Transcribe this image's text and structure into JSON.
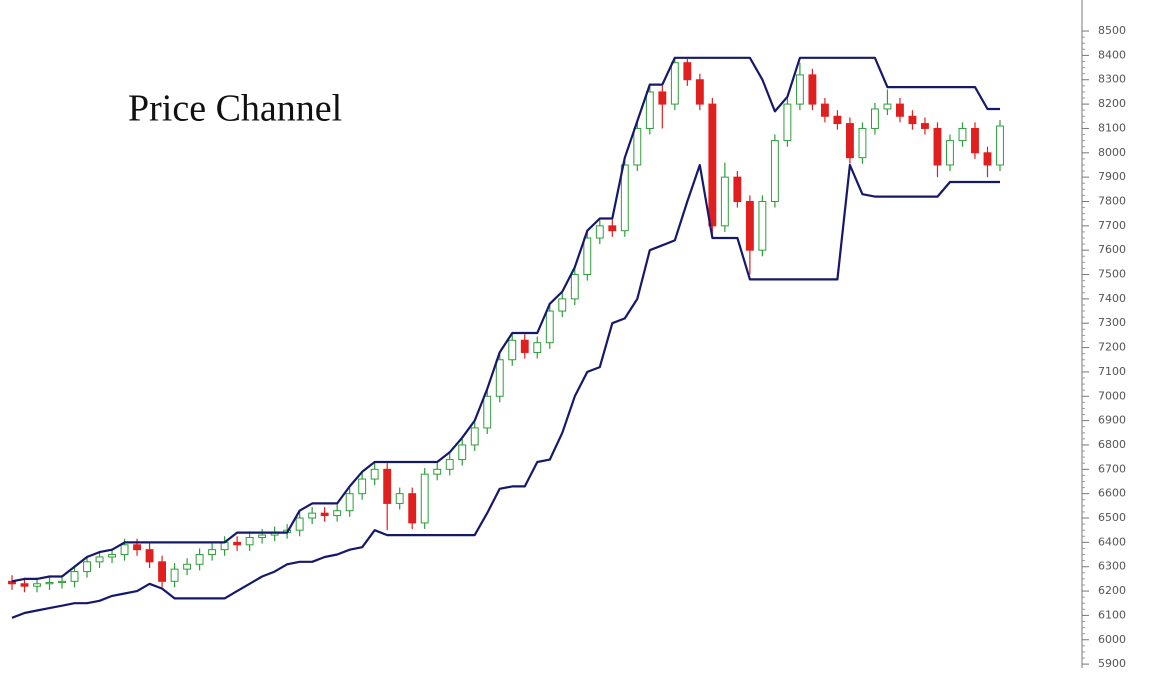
{
  "chart_data": {
    "type": "candlestick",
    "title": "Price Channel",
    "open": [
      6240,
      6230,
      6220,
      6230,
      6235,
      6240,
      6280,
      6320,
      6340,
      6350,
      6390,
      6370,
      6320,
      6240,
      6290,
      6310,
      6350,
      6370,
      6400,
      6390,
      6420,
      6430,
      6440,
      6450,
      6500,
      6520,
      6510,
      6530,
      6600,
      6660,
      6700,
      6560,
      6600,
      6480,
      6680,
      6700,
      6740,
      6800,
      6870,
      7000,
      7150,
      7230,
      7180,
      7220,
      7350,
      7400,
      7500,
      7650,
      7700,
      7680,
      7950,
      8100,
      8250,
      8200,
      8370,
      8300,
      8200,
      7700,
      7900,
      7800,
      7600,
      7800,
      8050,
      8200,
      8320,
      8200,
      8150,
      8120,
      7980,
      8100,
      8180,
      8200,
      8150,
      8120,
      8100,
      7950,
      8050,
      8100,
      8000,
      7950
    ],
    "high": [
      6265,
      6255,
      6255,
      6260,
      6265,
      6305,
      6345,
      6365,
      6375,
      6415,
      6415,
      6395,
      6345,
      6315,
      6335,
      6375,
      6395,
      6425,
      6425,
      6445,
      6455,
      6465,
      6475,
      6525,
      6545,
      6545,
      6555,
      6625,
      6685,
      6725,
      6725,
      6625,
      6625,
      6705,
      6725,
      6765,
      6825,
      6895,
      7025,
      7175,
      7255,
      7255,
      7245,
      7375,
      7425,
      7525,
      7675,
      7725,
      7725,
      7975,
      8125,
      8275,
      8275,
      8385,
      8385,
      8325,
      8225,
      7960,
      7925,
      7825,
      7825,
      8075,
      8225,
      8370,
      8345,
      8225,
      8175,
      8145,
      8125,
      8205,
      8260,
      8225,
      8175,
      8145,
      8125,
      8075,
      8125,
      8125,
      8025,
      8135
    ],
    "low": [
      6205,
      6195,
      6195,
      6205,
      6210,
      6215,
      6255,
      6295,
      6315,
      6325,
      6345,
      6295,
      6215,
      6215,
      6265,
      6285,
      6325,
      6345,
      6365,
      6365,
      6395,
      6405,
      6415,
      6425,
      6475,
      6485,
      6485,
      6505,
      6575,
      6635,
      6450,
      6535,
      6455,
      6455,
      6655,
      6675,
      6715,
      6775,
      6845,
      6975,
      7125,
      7155,
      7155,
      7195,
      7325,
      7375,
      7475,
      7625,
      7655,
      7655,
      7925,
      8075,
      8100,
      8175,
      8275,
      8175,
      7650,
      7675,
      7775,
      7500,
      7575,
      7775,
      8025,
      8175,
      8175,
      8125,
      8095,
      7955,
      7955,
      8075,
      8155,
      8125,
      8095,
      8075,
      7900,
      7925,
      8025,
      7975,
      7900,
      7925
    ],
    "close": [
      6230,
      6220,
      6230,
      6235,
      6240,
      6280,
      6320,
      6340,
      6350,
      6390,
      6370,
      6320,
      6240,
      6290,
      6310,
      6350,
      6370,
      6400,
      6390,
      6420,
      6430,
      6440,
      6450,
      6500,
      6520,
      6510,
      6530,
      6600,
      6660,
      6700,
      6560,
      6600,
      6480,
      6680,
      6700,
      6740,
      6800,
      6870,
      7000,
      7150,
      7230,
      7180,
      7220,
      7350,
      7400,
      7500,
      7650,
      7700,
      7680,
      7950,
      8100,
      8250,
      8200,
      8370,
      8300,
      8200,
      7700,
      7900,
      7800,
      7600,
      7800,
      8050,
      8200,
      8320,
      8200,
      8150,
      8120,
      7980,
      8100,
      8180,
      8200,
      8150,
      8120,
      8100,
      7950,
      8050,
      8100,
      8000,
      7950,
      8110
    ],
    "channel_upper": [
      6240,
      6250,
      6250,
      6260,
      6260,
      6300,
      6340,
      6360,
      6370,
      6400,
      6400,
      6400,
      6400,
      6400,
      6400,
      6400,
      6400,
      6400,
      6440,
      6440,
      6440,
      6440,
      6440,
      6530,
      6560,
      6560,
      6560,
      6630,
      6690,
      6730,
      6730,
      6730,
      6730,
      6730,
      6730,
      6770,
      6830,
      6900,
      7030,
      7180,
      7260,
      7260,
      7260,
      7380,
      7430,
      7530,
      7680,
      7730,
      7730,
      7980,
      8130,
      8280,
      8280,
      8390,
      8390,
      8390,
      8390,
      8390,
      8390,
      8390,
      8300,
      8170,
      8230,
      8390,
      8390,
      8390,
      8390,
      8390,
      8390,
      8390,
      8270,
      8270,
      8270,
      8270,
      8270,
      8270,
      8270,
      8270,
      8180,
      8180
    ],
    "channel_lower": [
      6090,
      6110,
      6120,
      6130,
      6140,
      6150,
      6150,
      6160,
      6180,
      6190,
      6200,
      6230,
      6210,
      6170,
      6170,
      6170,
      6170,
      6170,
      6200,
      6230,
      6260,
      6280,
      6310,
      6320,
      6320,
      6340,
      6350,
      6370,
      6380,
      6450,
      6430,
      6430,
      6430,
      6430,
      6430,
      6430,
      6430,
      6430,
      6520,
      6620,
      6630,
      6630,
      6730,
      6740,
      6850,
      7000,
      7100,
      7120,
      7300,
      7320,
      7400,
      7600,
      7620,
      7640,
      7800,
      7950,
      7650,
      7650,
      7650,
      7480,
      7480,
      7480,
      7480,
      7480,
      7480,
      7480,
      7480,
      7950,
      7830,
      7820,
      7820,
      7820,
      7820,
      7820,
      7820,
      7880,
      7880,
      7880,
      7880,
      7880
    ],
    "up_color": "#2e9e3a",
    "down_color": "#e01f1f",
    "channel_color": "#16186a",
    "ylim": [
      5884,
      8607
    ],
    "yticks": [
      5900,
      6000,
      6100,
      6200,
      6300,
      6400,
      6500,
      6600,
      6700,
      6800,
      6900,
      7000,
      7100,
      7200,
      7300,
      7400,
      7500,
      7600,
      7700,
      7800,
      7900,
      8000,
      8100,
      8200,
      8300,
      8400,
      8500
    ]
  }
}
